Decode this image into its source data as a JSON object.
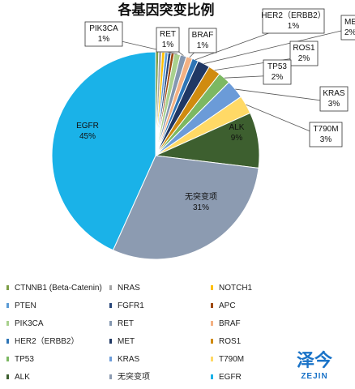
{
  "chart_data": {
    "type": "pie",
    "title": "各基因突变比例",
    "legend_position": "bottom",
    "series": [
      {
        "name": "CTNNB1 (Beta-Catenin)",
        "value": 0.5,
        "color": "#7d9e46"
      },
      {
        "name": "NRAS",
        "value": 0.5,
        "color": "#a5a5a5"
      },
      {
        "name": "NOTCH1",
        "value": 0.5,
        "color": "#ffc000"
      },
      {
        "name": "PTEN",
        "value": 0.5,
        "color": "#5b9bd5"
      },
      {
        "name": "FGFR1",
        "value": 0.5,
        "color": "#264478"
      },
      {
        "name": "APC",
        "value": 0.5,
        "color": "#9e480e"
      },
      {
        "name": "PIK3CA",
        "value": 1,
        "label": "1%",
        "color": "#a9d18e"
      },
      {
        "name": "RET",
        "value": 1,
        "label": "1%",
        "color": "#8497b0"
      },
      {
        "name": "BRAF",
        "value": 1,
        "label": "1%",
        "color": "#f4b183"
      },
      {
        "name": "HER2（ERBB2）",
        "value": 1,
        "label": "1%",
        "color": "#2e75b6"
      },
      {
        "name": "MET",
        "value": 2,
        "label": "2%",
        "color": "#203864"
      },
      {
        "name": "ROS1",
        "value": 2,
        "label": "2%",
        "color": "#d08b10"
      },
      {
        "name": "TP53",
        "value": 2,
        "label": "2%",
        "color": "#7cb862"
      },
      {
        "name": "KRAS",
        "value": 3,
        "label": "3%",
        "color": "#6b9bd8"
      },
      {
        "name": "T790M",
        "value": 3,
        "label": "3%",
        "color": "#ffd966"
      },
      {
        "name": "ALK",
        "value": 9,
        "label": "9%",
        "color": "#3d5f2f"
      },
      {
        "name": "无突变项",
        "value": 31,
        "label": "31%",
        "color": "#8c9bb1"
      },
      {
        "name": "EGFR",
        "value": 45,
        "label": "45%",
        "color": "#1ab2e8"
      }
    ]
  },
  "watermark": {
    "main": "泽今",
    "sub": "ZEJIN",
    "color": "#1a73c8"
  }
}
